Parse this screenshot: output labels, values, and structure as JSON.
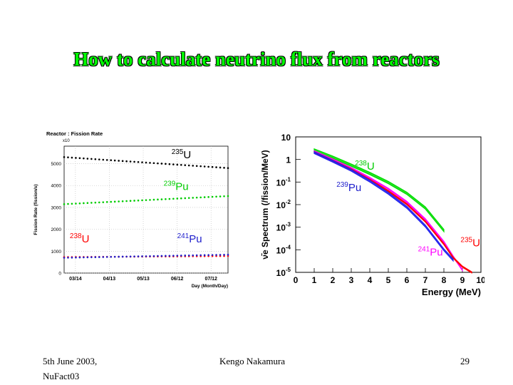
{
  "title": "How to calculate neutrino flux from reactors",
  "footer": {
    "date_line1": "5th June 2003,",
    "date_line2": "NuFact03",
    "author": "Kengo Nakamura",
    "page": "29"
  },
  "chart_data": [
    {
      "type": "scatter",
      "title": "Reactor : Fission Rate",
      "xlabel": "Day (Month/Day)",
      "ylabel": "Fission Rate (fission/s)",
      "y_multiplier": "x10",
      "y_multiplier_exp": "16",
      "ylim": [
        0,
        5800
      ],
      "xlim": [
        0,
        145
      ],
      "grid": true,
      "x_ticks": [
        {
          "v": 10,
          "label": "03/14"
        },
        {
          "v": 40,
          "label": "04/13"
        },
        {
          "v": 70,
          "label": "05/13"
        },
        {
          "v": 100,
          "label": "06/12"
        },
        {
          "v": 130,
          "label": "07/12"
        }
      ],
      "y_ticks": [
        0,
        1000,
        2000,
        3000,
        4000,
        5000
      ],
      "labels": [
        {
          "mass": "235",
          "sym": "U",
          "color": "#000000",
          "x": 95,
          "y": 5250
        },
        {
          "mass": "239",
          "sym": "Pu",
          "color": "#00cc00",
          "x": 88,
          "y": 3800
        },
        {
          "mass": "238",
          "sym": "U",
          "color": "#ff0000",
          "x": 5,
          "y": 1400
        },
        {
          "mass": "241",
          "sym": "Pu",
          "color": "#2020cc",
          "x": 100,
          "y": 1400
        }
      ],
      "series": [
        {
          "name": "235U",
          "color": "#000000",
          "x": [
            0,
            145
          ],
          "y": [
            5300,
            4800
          ]
        },
        {
          "name": "239Pu",
          "color": "#00cc00",
          "x": [
            0,
            145
          ],
          "y": [
            3150,
            3520
          ]
        },
        {
          "name": "238U",
          "color": "#ff0000",
          "x": [
            0,
            145
          ],
          "y": [
            730,
            780
          ]
        },
        {
          "name": "241Pu",
          "color": "#2020cc",
          "x": [
            0,
            145
          ],
          "y": [
            700,
            840
          ]
        }
      ]
    },
    {
      "type": "line",
      "ylabel": "ν̄e Spectrum (/fission/MeV)",
      "xlabel": "Energy (MeV)",
      "xlim": [
        0,
        10
      ],
      "y_log": true,
      "ylim_exp": [
        -5,
        1
      ],
      "x_ticks": [
        0,
        1,
        2,
        3,
        4,
        5,
        6,
        7,
        8,
        9,
        10
      ],
      "y_ticks": [
        {
          "exp": 1,
          "base": "10",
          "sup": ""
        },
        {
          "exp": 0,
          "base": "1",
          "sup": ""
        },
        {
          "exp": -1,
          "base": "10",
          "sup": "-1"
        },
        {
          "exp": -2,
          "base": "10",
          "sup": "-2"
        },
        {
          "exp": -3,
          "base": "10",
          "sup": "-3"
        },
        {
          "exp": -4,
          "base": "10",
          "sup": "-4"
        },
        {
          "exp": -5,
          "base": "10",
          "sup": "-5"
        }
      ],
      "labels": [
        {
          "mass": "238",
          "sym": "U",
          "color": "#00cc00",
          "x": 3.2,
          "y_exp": -0.45
        },
        {
          "mass": "239",
          "sym": "Pu",
          "color": "#2020cc",
          "x": 2.2,
          "y_exp": -1.4
        },
        {
          "mass": "241",
          "sym": "Pu",
          "color": "#ff00ff",
          "x": 6.6,
          "y_exp": -4.25
        },
        {
          "mass": "235",
          "sym": "U",
          "color": "#ff0000",
          "x": 8.9,
          "y_exp": -3.85
        }
      ],
      "series": [
        {
          "name": "238U",
          "color": "#00dd00",
          "x": [
            1,
            2,
            3,
            4,
            5,
            6,
            7,
            8
          ],
          "y_exp": [
            0.42,
            0.1,
            -0.25,
            -0.62,
            -1.02,
            -1.5,
            -2.15,
            -3.15
          ],
          "band": 0.1
        },
        {
          "name": "241Pu",
          "color": "#ff00ff",
          "x": [
            1,
            2,
            3,
            4,
            5,
            6,
            7,
            8,
            8.5,
            9
          ],
          "y_exp": [
            0.36,
            0.0,
            -0.38,
            -0.82,
            -1.3,
            -1.88,
            -2.65,
            -3.65,
            -4.3,
            -4.9
          ],
          "band": 0.05
        },
        {
          "name": "235U",
          "color": "#ff0000",
          "x": [
            1,
            2,
            3,
            4,
            5,
            6,
            7,
            8,
            8.5,
            9,
            9.5
          ],
          "y_exp": [
            0.32,
            -0.05,
            -0.44,
            -0.9,
            -1.4,
            -1.98,
            -2.75,
            -3.75,
            -4.35,
            -4.75,
            -5.0
          ],
          "band": 0.05
        },
        {
          "name": "239Pu",
          "color": "#2020ee",
          "x": [
            1,
            2,
            3,
            4,
            5,
            6,
            7,
            8,
            8.5
          ],
          "y_exp": [
            0.3,
            -0.08,
            -0.48,
            -0.96,
            -1.5,
            -2.12,
            -2.95,
            -4.0,
            -4.45
          ],
          "band": 0.08
        }
      ]
    }
  ]
}
